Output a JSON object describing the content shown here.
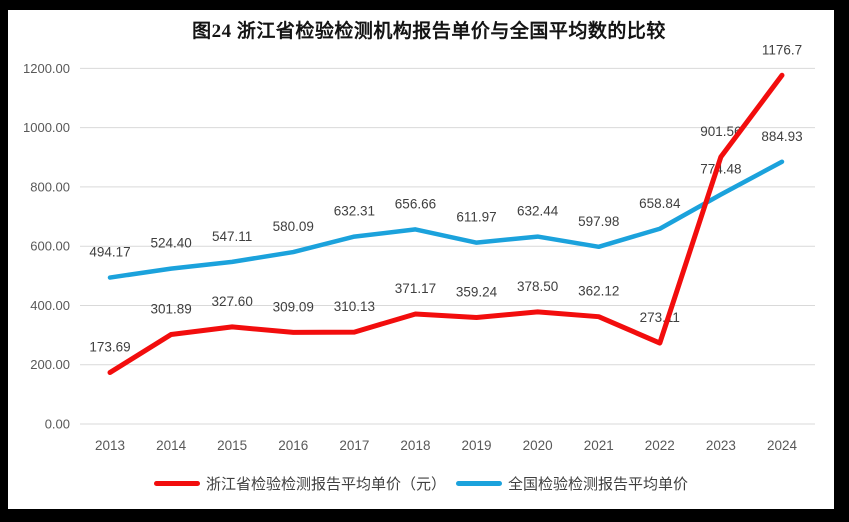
{
  "title": "图24  浙江省检验检测机构报告单价与全国平均数的比较",
  "colors": {
    "frame": "#000000",
    "background": "#ffffff",
    "gridline": "#d9d9d9",
    "axis_text": "#595959",
    "data_label_text": "#3f3f3f",
    "series_zhejiang": "#f20d0d",
    "series_national": "#1ba2dc"
  },
  "chart_data": {
    "type": "line",
    "title": "图24  浙江省检验检测机构报告单价与全国平均数的比较",
    "categories": [
      "2013",
      "2014",
      "2015",
      "2016",
      "2017",
      "2018",
      "2019",
      "2020",
      "2021",
      "2022",
      "2023",
      "2024"
    ],
    "series": [
      {
        "name": "浙江省检验检测报告平均单价（元）",
        "color": "#f20d0d",
        "values": [
          173.69,
          301.89,
          327.6,
          309.09,
          310.13,
          371.17,
          359.24,
          378.5,
          362.12,
          273.11,
          901.56,
          1176.7
        ],
        "labels": [
          "173.69",
          "301.89",
          "327.60",
          "309.09",
          "310.13",
          "371.17",
          "359.24",
          "378.50",
          "362.12",
          "273.11",
          "901.56",
          "1176.7"
        ]
      },
      {
        "name": "全国检验检测报告平均单价",
        "color": "#1ba2dc",
        "values": [
          494.17,
          524.4,
          547.11,
          580.09,
          632.31,
          656.66,
          611.97,
          632.44,
          597.98,
          658.84,
          774.48,
          884.93
        ],
        "labels": [
          "494.17",
          "524.40",
          "547.11",
          "580.09",
          "632.31",
          "656.66",
          "611.97",
          "632.44",
          "597.98",
          "658.84",
          "774.48",
          "884.93"
        ]
      }
    ],
    "y_ticks": [
      "1200.00",
      "1000.00",
      "800.00",
      "600.00",
      "400.00",
      "200.00",
      "0.00"
    ],
    "xlabel": "",
    "ylabel": "",
    "ylim": [
      0,
      1200
    ],
    "grid": true,
    "data_labels": true,
    "legend_position": "bottom"
  }
}
